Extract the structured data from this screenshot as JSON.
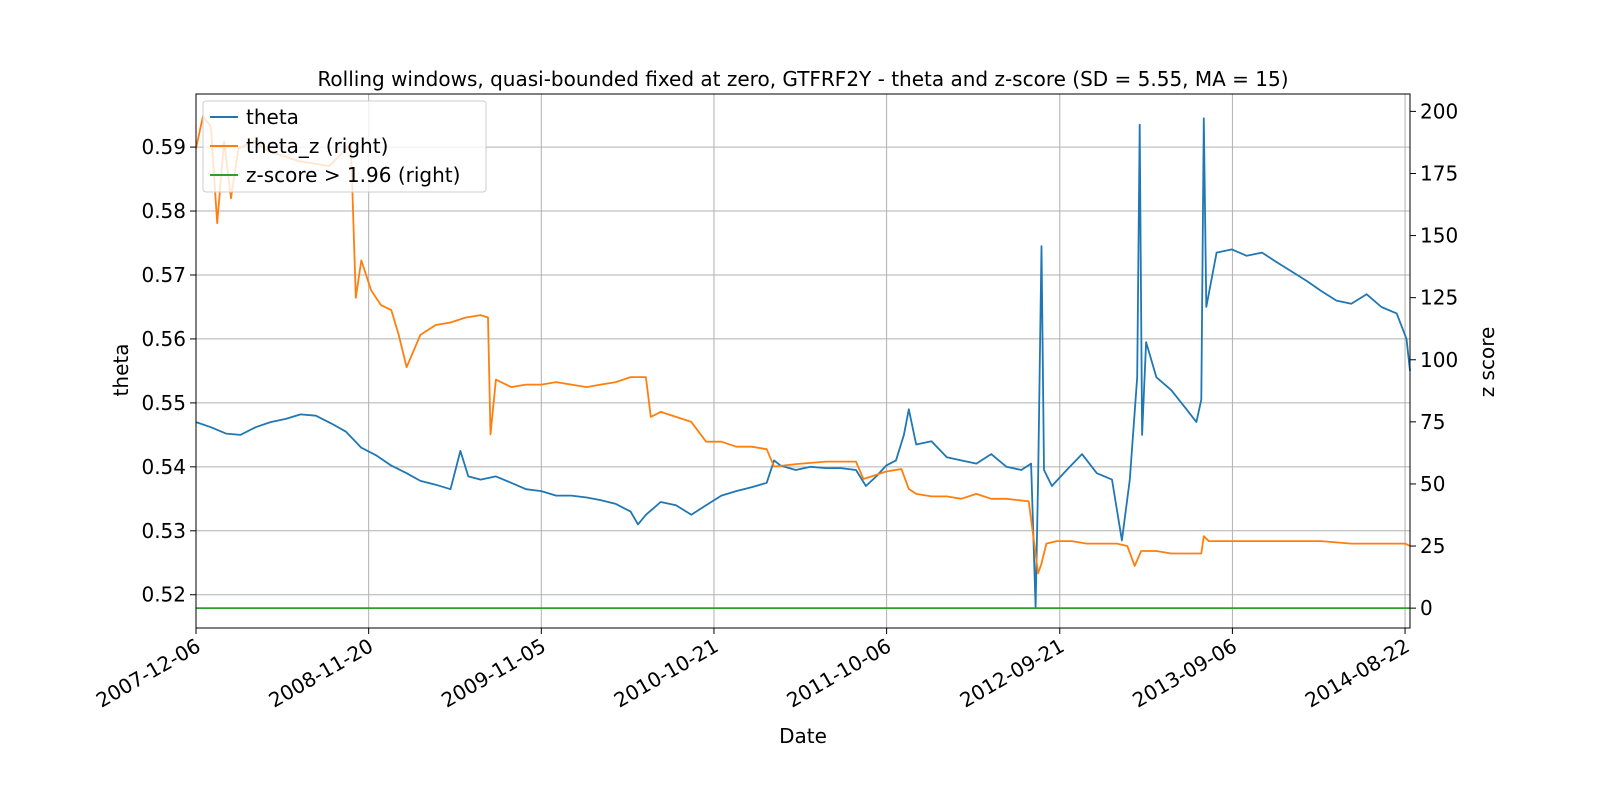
{
  "chart_data": {
    "type": "line",
    "title": "Rolling windows, quasi-bounded fixed at zero, GTFRF2Y - theta and z-score (SD = 5.55, MA = 15)",
    "xlabel": "Date",
    "ylabel_left": "theta",
    "ylabel_right": "z score",
    "x_range": [
      "2007-12-06",
      "2014-09-01"
    ],
    "x_ticks": [
      "2007-12-06",
      "2008-11-20",
      "2009-11-05",
      "2010-10-21",
      "2011-10-06",
      "2012-09-21",
      "2013-09-06",
      "2014-08-22"
    ],
    "y_left_range": [
      0.5148,
      0.5983
    ],
    "y_left_ticks": [
      "0.52",
      "0.53",
      "0.54",
      "0.55",
      "0.56",
      "0.57",
      "0.58",
      "0.59"
    ],
    "y_right_range": [
      -8,
      207
    ],
    "y_right_ticks": [
      "0",
      "25",
      "50",
      "75",
      "100",
      "125",
      "150",
      "175",
      "200"
    ],
    "grid": true,
    "legend_position": "top-left",
    "series": [
      {
        "name": "theta",
        "axis": "left",
        "color": "#1f77b4",
        "points": [
          [
            "2007-12-06",
            0.547
          ],
          [
            "2008-01-05",
            0.5462
          ],
          [
            "2008-02-05",
            0.5452
          ],
          [
            "2008-03-05",
            0.545
          ],
          [
            "2008-04-05",
            0.5462
          ],
          [
            "2008-05-05",
            0.547
          ],
          [
            "2008-06-05",
            0.5475
          ],
          [
            "2008-07-05",
            0.5482
          ],
          [
            "2008-08-05",
            0.548
          ],
          [
            "2008-09-05",
            0.5468
          ],
          [
            "2008-10-05",
            0.5455
          ],
          [
            "2008-11-05",
            0.543
          ],
          [
            "2008-12-05",
            0.5418
          ],
          [
            "2009-01-05",
            0.5402
          ],
          [
            "2009-02-05",
            0.539
          ],
          [
            "2009-03-05",
            0.5378
          ],
          [
            "2009-04-05",
            0.5372
          ],
          [
            "2009-05-05",
            0.5365
          ],
          [
            "2009-05-25",
            0.5425
          ],
          [
            "2009-06-10",
            0.5385
          ],
          [
            "2009-07-05",
            0.538
          ],
          [
            "2009-08-05",
            0.5385
          ],
          [
            "2009-09-05",
            0.5375
          ],
          [
            "2009-10-05",
            0.5365
          ],
          [
            "2009-11-05",
            0.5362
          ],
          [
            "2009-12-05",
            0.5355
          ],
          [
            "2010-01-05",
            0.5355
          ],
          [
            "2010-02-05",
            0.5352
          ],
          [
            "2010-03-05",
            0.5348
          ],
          [
            "2010-04-05",
            0.5342
          ],
          [
            "2010-05-05",
            0.533
          ],
          [
            "2010-05-20",
            0.531
          ],
          [
            "2010-06-05",
            0.5325
          ],
          [
            "2010-07-05",
            0.5345
          ],
          [
            "2010-08-05",
            0.534
          ],
          [
            "2010-09-05",
            0.5325
          ],
          [
            "2010-10-05",
            0.534
          ],
          [
            "2010-11-05",
            0.5355
          ],
          [
            "2010-12-05",
            0.5362
          ],
          [
            "2011-01-05",
            0.5368
          ],
          [
            "2011-02-05",
            0.5375
          ],
          [
            "2011-02-20",
            0.541
          ],
          [
            "2011-03-05",
            0.5402
          ],
          [
            "2011-04-05",
            0.5395
          ],
          [
            "2011-05-05",
            0.54
          ],
          [
            "2011-06-05",
            0.5398
          ],
          [
            "2011-07-05",
            0.5398
          ],
          [
            "2011-08-05",
            0.5395
          ],
          [
            "2011-08-25",
            0.537
          ],
          [
            "2011-09-15",
            0.5385
          ],
          [
            "2011-10-05",
            0.5402
          ],
          [
            "2011-10-25",
            0.541
          ],
          [
            "2011-11-10",
            0.545
          ],
          [
            "2011-11-20",
            0.549
          ],
          [
            "2011-12-05",
            0.5435
          ],
          [
            "2012-01-05",
            0.544
          ],
          [
            "2012-02-05",
            0.5415
          ],
          [
            "2012-03-05",
            0.541
          ],
          [
            "2012-04-05",
            0.5405
          ],
          [
            "2012-05-05",
            0.542
          ],
          [
            "2012-06-05",
            0.54
          ],
          [
            "2012-07-05",
            0.5395
          ],
          [
            "2012-07-25",
            0.5405
          ],
          [
            "2012-08-03",
            0.518
          ],
          [
            "2012-08-08",
            0.538
          ],
          [
            "2012-08-15",
            0.5745
          ],
          [
            "2012-08-20",
            0.5395
          ],
          [
            "2012-09-05",
            0.537
          ],
          [
            "2012-10-05",
            0.5395
          ],
          [
            "2012-11-05",
            0.542
          ],
          [
            "2012-12-05",
            0.539
          ],
          [
            "2013-01-05",
            0.538
          ],
          [
            "2013-01-25",
            0.5285
          ],
          [
            "2013-02-10",
            0.538
          ],
          [
            "2013-02-25",
            0.554
          ],
          [
            "2013-03-02",
            0.5935
          ],
          [
            "2013-03-07",
            0.545
          ],
          [
            "2013-03-15",
            0.5595
          ],
          [
            "2013-04-05",
            0.554
          ],
          [
            "2013-05-05",
            0.552
          ],
          [
            "2013-06-05",
            0.549
          ],
          [
            "2013-06-25",
            0.547
          ],
          [
            "2013-07-05",
            0.5505
          ],
          [
            "2013-07-10",
            0.5945
          ],
          [
            "2013-07-15",
            0.565
          ],
          [
            "2013-08-05",
            0.5735
          ],
          [
            "2013-09-05",
            0.574
          ],
          [
            "2013-10-05",
            0.573
          ],
          [
            "2013-11-05",
            0.5735
          ],
          [
            "2013-12-05",
            0.572
          ],
          [
            "2014-01-05",
            0.5705
          ],
          [
            "2014-02-05",
            0.569
          ],
          [
            "2014-03-05",
            0.5675
          ],
          [
            "2014-04-05",
            0.566
          ],
          [
            "2014-05-05",
            0.5655
          ],
          [
            "2014-06-05",
            0.567
          ],
          [
            "2014-07-05",
            0.565
          ],
          [
            "2014-08-05",
            0.564
          ],
          [
            "2014-08-25",
            0.56
          ],
          [
            "2014-09-01",
            0.555
          ]
        ]
      },
      {
        "name": "theta_z (right)",
        "axis": "right",
        "color": "#ff7f0e",
        "points": [
          [
            "2007-12-06",
            185
          ],
          [
            "2007-12-20",
            198
          ],
          [
            "2008-01-05",
            194
          ],
          [
            "2008-01-18",
            155
          ],
          [
            "2008-02-01",
            188
          ],
          [
            "2008-02-15",
            165
          ],
          [
            "2008-03-01",
            185
          ],
          [
            "2008-04-01",
            188
          ],
          [
            "2008-05-01",
            184
          ],
          [
            "2008-06-01",
            182
          ],
          [
            "2008-07-01",
            180
          ],
          [
            "2008-08-01",
            179
          ],
          [
            "2008-09-01",
            178
          ],
          [
            "2008-10-01",
            184
          ],
          [
            "2008-10-15",
            187
          ],
          [
            "2008-10-25",
            125
          ],
          [
            "2008-11-05",
            140
          ],
          [
            "2008-11-25",
            128
          ],
          [
            "2008-12-15",
            122
          ],
          [
            "2009-01-05",
            120
          ],
          [
            "2009-01-20",
            110
          ],
          [
            "2009-02-05",
            97
          ],
          [
            "2009-03-05",
            110
          ],
          [
            "2009-04-05",
            114
          ],
          [
            "2009-05-05",
            115
          ],
          [
            "2009-06-05",
            117
          ],
          [
            "2009-07-05",
            118
          ],
          [
            "2009-07-20",
            117
          ],
          [
            "2009-07-25",
            70
          ],
          [
            "2009-08-05",
            92
          ],
          [
            "2009-09-05",
            89
          ],
          [
            "2009-10-05",
            90
          ],
          [
            "2009-11-05",
            90
          ],
          [
            "2009-12-05",
            91
          ],
          [
            "2010-01-05",
            90
          ],
          [
            "2010-02-05",
            89
          ],
          [
            "2010-03-05",
            90
          ],
          [
            "2010-04-05",
            91
          ],
          [
            "2010-05-05",
            93
          ],
          [
            "2010-06-05",
            93
          ],
          [
            "2010-06-15",
            77
          ],
          [
            "2010-07-05",
            79
          ],
          [
            "2010-08-05",
            77
          ],
          [
            "2010-09-05",
            75
          ],
          [
            "2010-10-05",
            67
          ],
          [
            "2010-11-05",
            67
          ],
          [
            "2010-12-05",
            65
          ],
          [
            "2011-01-05",
            65
          ],
          [
            "2011-02-05",
            64
          ],
          [
            "2011-02-20",
            57
          ],
          [
            "2011-04-05",
            58
          ],
          [
            "2011-06-05",
            59
          ],
          [
            "2011-08-05",
            59
          ],
          [
            "2011-08-20",
            52
          ],
          [
            "2011-09-05",
            53
          ],
          [
            "2011-10-05",
            55
          ],
          [
            "2011-11-05",
            56
          ],
          [
            "2011-11-20",
            48
          ],
          [
            "2011-12-05",
            46
          ],
          [
            "2012-01-05",
            45
          ],
          [
            "2012-02-05",
            45
          ],
          [
            "2012-03-05",
            44
          ],
          [
            "2012-04-05",
            46
          ],
          [
            "2012-05-05",
            44
          ],
          [
            "2012-06-05",
            44
          ],
          [
            "2012-07-20",
            43
          ],
          [
            "2012-08-01",
            25
          ],
          [
            "2012-08-08",
            14
          ],
          [
            "2012-08-15",
            18
          ],
          [
            "2012-08-25",
            26
          ],
          [
            "2012-09-15",
            27
          ],
          [
            "2012-10-15",
            27
          ],
          [
            "2012-11-15",
            26
          ],
          [
            "2012-12-15",
            26
          ],
          [
            "2013-01-15",
            26
          ],
          [
            "2013-02-05",
            25
          ],
          [
            "2013-02-20",
            17
          ],
          [
            "2013-03-05",
            23
          ],
          [
            "2013-04-05",
            23
          ],
          [
            "2013-05-05",
            22
          ],
          [
            "2013-06-05",
            22
          ],
          [
            "2013-07-05",
            22
          ],
          [
            "2013-07-10",
            29
          ],
          [
            "2013-07-20",
            27
          ],
          [
            "2013-09-05",
            27
          ],
          [
            "2013-11-05",
            27
          ],
          [
            "2014-01-05",
            27
          ],
          [
            "2014-03-05",
            27
          ],
          [
            "2014-05-05",
            26
          ],
          [
            "2014-07-05",
            26
          ],
          [
            "2014-08-22",
            26
          ],
          [
            "2014-09-01",
            25
          ]
        ]
      },
      {
        "name": "z-score > 1.96 (right)",
        "axis": "right",
        "color": "#2ca02c",
        "points": [
          [
            "2007-12-06",
            0
          ],
          [
            "2014-09-01",
            0
          ]
        ]
      }
    ]
  }
}
